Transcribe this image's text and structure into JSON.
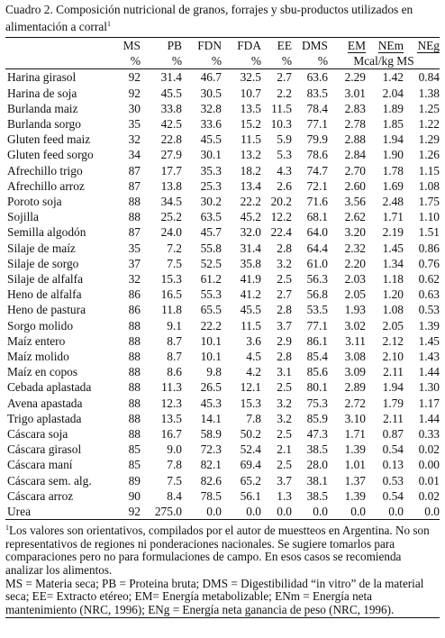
{
  "caption": {
    "text": "Cuadro 2.  Composición nutricional de granos, forrajes y sbu-productos utilizados en alimentación a corral",
    "note_mark": "1"
  },
  "columns": [
    "MS",
    "PB",
    "FDN",
    "FDA",
    "EE",
    "DMS",
    "EM",
    "NEm",
    "NEg"
  ],
  "units": {
    "ms": "%",
    "pb": "%",
    "fdn": "%",
    "fda": "%",
    "ee": "%",
    "dms": "%",
    "energy": "Mcal/kg MS"
  },
  "rows": [
    {
      "name": "Harina girasol",
      "v": [
        "92",
        "31.4",
        "46.7",
        "32.5",
        "2.7",
        "63.6",
        "2.29",
        "1.42",
        "0.84"
      ]
    },
    {
      "name": "Harina de soja",
      "v": [
        "92",
        "45.5",
        "30.5",
        "10.7",
        "2.2",
        "83.5",
        "3.01",
        "2.04",
        "1.38"
      ]
    },
    {
      "name": "Burlanda maiz",
      "v": [
        "30",
        "33.8",
        "32.8",
        "13.5",
        "11.5",
        "78.4",
        "2.83",
        "1.89",
        "1.25"
      ]
    },
    {
      "name": "Burlanda sorgo",
      "v": [
        "35",
        "42.5",
        "33.6",
        "15.2",
        "10.3",
        "77.1",
        "2.78",
        "1.85",
        "1.22"
      ]
    },
    {
      "name": "Gluten feed maiz",
      "v": [
        "32",
        "22.8",
        "45.5",
        "11.5",
        "5.9",
        "79.9",
        "2.88",
        "1.94",
        "1.29"
      ]
    },
    {
      "name": "Gluten feed sorgo",
      "v": [
        "34",
        "27.9",
        "30.1",
        "13.2",
        "5.3",
        "78.6",
        "2.84",
        "1.90",
        "1.26"
      ]
    },
    {
      "name": "Afrechillo trigo",
      "v": [
        "87",
        "17.7",
        "35.3",
        "18.2",
        "4.3",
        "74.7",
        "2.70",
        "1.78",
        "1.15"
      ]
    },
    {
      "name": "Afrechillo arroz",
      "v": [
        "87",
        "13.8",
        "25.3",
        "13.4",
        "2.6",
        "72.1",
        "2.60",
        "1.69",
        "1.08"
      ]
    },
    {
      "name": "Poroto soja",
      "v": [
        "88",
        "34.5",
        "30.2",
        "22.2",
        "20.2",
        "71.6",
        "3.56",
        "2.48",
        "1.75"
      ]
    },
    {
      "name": "Sojilla",
      "v": [
        "88",
        "25.2",
        "63.5",
        "45.2",
        "12.2",
        "68.1",
        "2.62",
        "1.71",
        "1.10"
      ]
    },
    {
      "name": "Semilla algodón",
      "v": [
        "87",
        "24.0",
        "45.7",
        "32.0",
        "22.4",
        "64.0",
        "3.20",
        "2.19",
        "1.51"
      ]
    },
    {
      "name": "Silaje de maíz",
      "v": [
        "35",
        "7.2",
        "55.8",
        "31.4",
        "2.8",
        "64.4",
        "2.32",
        "1.45",
        "0.86"
      ]
    },
    {
      "name": "Silaje de sorgo",
      "v": [
        "37",
        "7.5",
        "52.5",
        "35.8",
        "3.2",
        "61.0",
        "2.20",
        "1.34",
        "0.76"
      ]
    },
    {
      "name": "Silaje de alfalfa",
      "v": [
        "32",
        "15.3",
        "61.2",
        "41.9",
        "2.5",
        "56.3",
        "2.03",
        "1.18",
        "0.62"
      ]
    },
    {
      "name": "Heno de alfalfa",
      "v": [
        "86",
        "16.5",
        "55.3",
        "41.2",
        "2.7",
        "56.8",
        "2.05",
        "1.20",
        "0.63"
      ]
    },
    {
      "name": "Heno de pastura",
      "v": [
        "86",
        "11.8",
        "65.5",
        "45.5",
        "2.8",
        "53.5",
        "1.93",
        "1.08",
        "0.53"
      ]
    },
    {
      "name": "Sorgo molido",
      "v": [
        "88",
        "9.1",
        "22.2",
        "11.5",
        "3.7",
        "77.1",
        "3.02",
        "2.05",
        "1.39"
      ]
    },
    {
      "name": "Maíz entero",
      "v": [
        "88",
        "8.7",
        "10.1",
        "3.6",
        "2.9",
        "86.1",
        "3.11",
        "2.12",
        "1.45"
      ]
    },
    {
      "name": "Maíz molido",
      "v": [
        "88",
        "8.7",
        "10.1",
        "4.5",
        "2.8",
        "85.4",
        "3.08",
        "2.10",
        "1.43"
      ]
    },
    {
      "name": "Maíz en copos",
      "v": [
        "88",
        "8.6",
        "9.8",
        "4.2",
        "3.1",
        "85.6",
        "3.09",
        "2.11",
        "1.44"
      ]
    },
    {
      "name": "Cebada aplastada",
      "v": [
        "88",
        "11.3",
        "26.5",
        "12.1",
        "2.5",
        "80.1",
        "2.89",
        "1.94",
        "1.30"
      ]
    },
    {
      "name": "Avena apastada",
      "v": [
        "88",
        "12.3",
        "45.3",
        "15.3",
        "3.2",
        "75.3",
        "2.72",
        "1.79",
        "1.17"
      ]
    },
    {
      "name": "Trigo aplastada",
      "v": [
        "88",
        "13.5",
        "14.1",
        "7.8",
        "3.2",
        "85.9",
        "3.10",
        "2.11",
        "1.44"
      ]
    },
    {
      "name": "Cáscara soja",
      "v": [
        "88",
        "16.7",
        "58.9",
        "50.2",
        "2.5",
        "47.3",
        "1.71",
        "0.87",
        "0.33"
      ]
    },
    {
      "name": "Cáscara girasol",
      "v": [
        "85",
        "9.0",
        "72.3",
        "52.4",
        "2.1",
        "38.5",
        "1.39",
        "0.54",
        "0.02"
      ]
    },
    {
      "name": "Cáscara maní",
      "v": [
        "85",
        "7.8",
        "82.1",
        "69.4",
        "2.5",
        "28.0",
        "1.01",
        "0.13",
        "0.00"
      ]
    },
    {
      "name": "Cáscara sem. alg.",
      "v": [
        "89",
        "7.5",
        "82.6",
        "65.2",
        "3.7",
        "38.1",
        "1.37",
        "0.53",
        "0.01"
      ]
    },
    {
      "name": "Cáscara arroz",
      "v": [
        "90",
        "8.4",
        "78.5",
        "56.1",
        "1.3",
        "38.5",
        "1.39",
        "0.54",
        "0.02"
      ]
    },
    {
      "name": "Urea",
      "v": [
        "92",
        "275.0",
        "0.0",
        "0.0",
        "0.0",
        "0.0",
        "0.0",
        "0.0",
        "0.0"
      ]
    }
  ],
  "footnote": {
    "mark": "1",
    "text": "Los valores son orientativos, compilados por el autor de muestteos en Argentina.  No son representativos de regiones ni ponderaciones nacionales.  Se sugiere tomarlos para comparaciones pero no para formulaciones de campo. En esos casos se recomienda analizar los alimentos."
  },
  "abbreviations": "MS = Materia seca; PB = Proteina bruta; DMS = Digestibilidad “in vitro” de la material seca;  EE= Extracto etéreo; EM= Energía metabolizable; ENm = Energía neta mantenimiento (NRC, 1996); ENg = Energía neta ganancia de peso (NRC, 1996)."
}
